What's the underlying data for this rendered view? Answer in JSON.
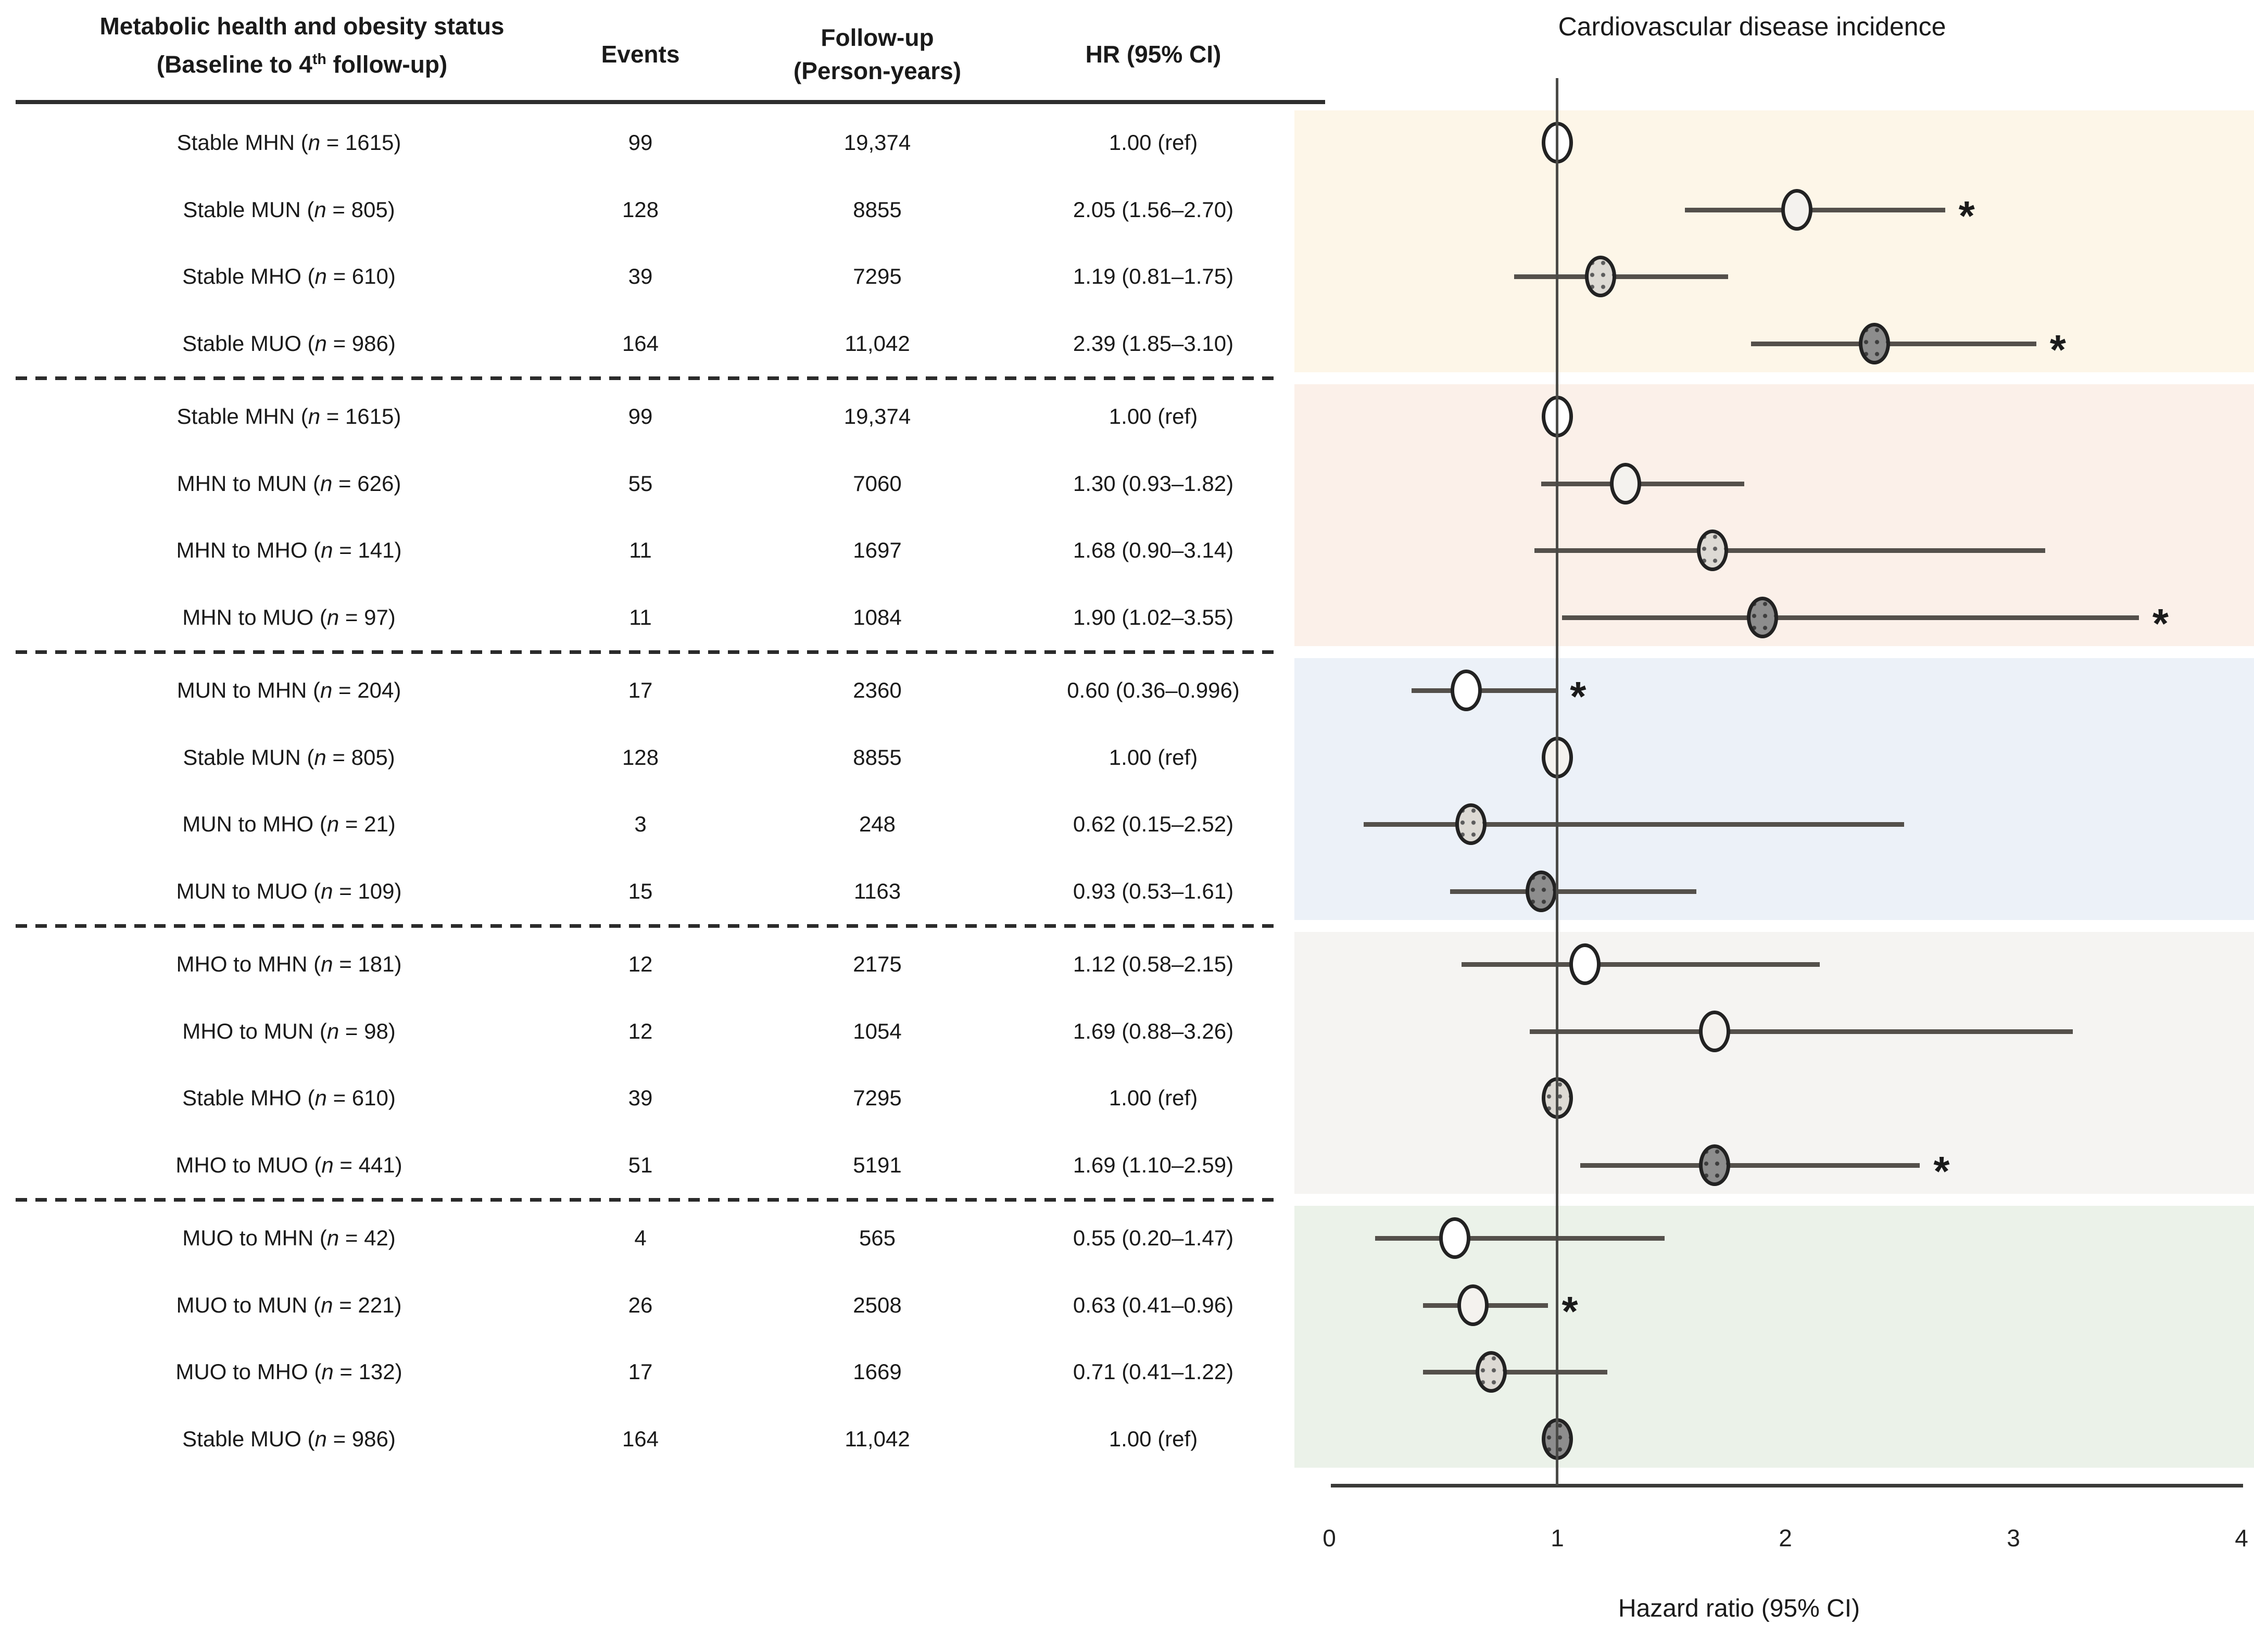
{
  "table": {
    "header": {
      "col1_line1": "Metabolic health and obesity status",
      "col1_line2_pre": "(Baseline to 4",
      "col1_line2_sup": "th",
      "col1_line2_post": " follow-up)",
      "col2": "Events",
      "col3_line1": "Follow-up",
      "col3_line2": "(Person-years)",
      "col4": "HR (95% CI)"
    }
  },
  "chart_data": {
    "type": "forest",
    "title": "Cardiovascular disease incidence",
    "xlabel": "Hazard ratio (95% CI)",
    "xlim": [
      0,
      4
    ],
    "xticks": [
      "0",
      "1",
      "2",
      "3",
      "4"
    ],
    "ref_line": 1.0,
    "grid": false,
    "significance_symbol": "*",
    "marker_colors": {
      "mhn": "#FFFFFF",
      "mun": "#F4F2EE",
      "mho": "#DDDAD4",
      "muo": "#8D8D8D"
    },
    "sections": [
      {
        "band_color": "#FDF6E8",
        "rows": [
          {
            "label": "Stable MHN",
            "n": "1615",
            "events": "99",
            "person_years": "19,374",
            "hr_text": "1.00 (ref)",
            "hr": 1.0,
            "ci_low": null,
            "ci_high": null,
            "marker": "mhn",
            "significant": false
          },
          {
            "label": "Stable MUN",
            "n": "805",
            "events": "128",
            "person_years": "8855",
            "hr_text": "2.05 (1.56–2.70)",
            "hr": 2.05,
            "ci_low": 1.56,
            "ci_high": 2.7,
            "marker": "mun",
            "significant": true
          },
          {
            "label": "Stable MHO",
            "n": "610",
            "events": "39",
            "person_years": "7295",
            "hr_text": "1.19 (0.81–1.75)",
            "hr": 1.19,
            "ci_low": 0.81,
            "ci_high": 1.75,
            "marker": "mho",
            "significant": false
          },
          {
            "label": "Stable MUO",
            "n": "986",
            "events": "164",
            "person_years": "11,042",
            "hr_text": "2.39 (1.85–3.10)",
            "hr": 2.39,
            "ci_low": 1.85,
            "ci_high": 3.1,
            "marker": "muo",
            "significant": true
          }
        ]
      },
      {
        "band_color": "#FBF0E9",
        "rows": [
          {
            "label": "Stable MHN",
            "n": "1615",
            "events": "99",
            "person_years": "19,374",
            "hr_text": "1.00 (ref)",
            "hr": 1.0,
            "ci_low": null,
            "ci_high": null,
            "marker": "mhn",
            "significant": false
          },
          {
            "label": "MHN to MUN",
            "n": "626",
            "events": "55",
            "person_years": "7060",
            "hr_text": "1.30 (0.93–1.82)",
            "hr": 1.3,
            "ci_low": 0.93,
            "ci_high": 1.82,
            "marker": "mun",
            "significant": false
          },
          {
            "label": "MHN to MHO",
            "n": "141",
            "events": "11",
            "person_years": "1697",
            "hr_text": "1.68 (0.90–3.14)",
            "hr": 1.68,
            "ci_low": 0.9,
            "ci_high": 3.14,
            "marker": "mho",
            "significant": false
          },
          {
            "label": "MHN to MUO",
            "n": "97",
            "events": "11",
            "person_years": "1084",
            "hr_text": "1.90 (1.02–3.55)",
            "hr": 1.9,
            "ci_low": 1.02,
            "ci_high": 3.55,
            "marker": "muo",
            "significant": true
          }
        ]
      },
      {
        "band_color": "#ECF1F8",
        "rows": [
          {
            "label": "MUN to MHN",
            "n": "204",
            "events": "17",
            "person_years": "2360",
            "hr_text": "0.60 (0.36–0.996)",
            "hr": 0.6,
            "ci_low": 0.36,
            "ci_high": 0.996,
            "marker": "mhn",
            "significant": true
          },
          {
            "label": "Stable MUN",
            "n": "805",
            "events": "128",
            "person_years": "8855",
            "hr_text": "1.00 (ref)",
            "hr": 1.0,
            "ci_low": null,
            "ci_high": null,
            "marker": "mun",
            "significant": false
          },
          {
            "label": "MUN to MHO",
            "n": "21",
            "events": "3",
            "person_years": "248",
            "hr_text": "0.62 (0.15–2.52)",
            "hr": 0.62,
            "ci_low": 0.15,
            "ci_high": 2.52,
            "marker": "mho",
            "significant": false
          },
          {
            "label": "MUN to MUO",
            "n": "109",
            "events": "15",
            "person_years": "1163",
            "hr_text": "0.93 (0.53–1.61)",
            "hr": 0.93,
            "ci_low": 0.53,
            "ci_high": 1.61,
            "marker": "muo",
            "significant": false
          }
        ]
      },
      {
        "band_color": "#F5F4F2",
        "rows": [
          {
            "label": "MHO to MHN",
            "n": "181",
            "events": "12",
            "person_years": "2175",
            "hr_text": "1.12 (0.58–2.15)",
            "hr": 1.12,
            "ci_low": 0.58,
            "ci_high": 2.15,
            "marker": "mhn",
            "significant": false
          },
          {
            "label": "MHO to MUN",
            "n": "98",
            "events": "12",
            "person_years": "1054",
            "hr_text": "1.69 (0.88–3.26)",
            "hr": 1.69,
            "ci_low": 0.88,
            "ci_high": 3.26,
            "marker": "mun",
            "significant": false
          },
          {
            "label": "Stable MHO",
            "n": "610",
            "events": "39",
            "person_years": "7295",
            "hr_text": "1.00 (ref)",
            "hr": 1.0,
            "ci_low": null,
            "ci_high": null,
            "marker": "mho",
            "significant": false
          },
          {
            "label": "MHO to MUO",
            "n": "441",
            "events": "51",
            "person_years": "5191",
            "hr_text": "1.69 (1.10–2.59)",
            "hr": 1.69,
            "ci_low": 1.1,
            "ci_high": 2.59,
            "marker": "muo",
            "significant": true
          }
        ]
      },
      {
        "band_color": "#EBF2E9",
        "rows": [
          {
            "label": "MUO to MHN",
            "n": "42",
            "events": "4",
            "person_years": "565",
            "hr_text": "0.55 (0.20–1.47)",
            "hr": 0.55,
            "ci_low": 0.2,
            "ci_high": 1.47,
            "marker": "mhn",
            "significant": false
          },
          {
            "label": "MUO to MUN",
            "n": "221",
            "events": "26",
            "person_years": "2508",
            "hr_text": "0.63 (0.41–0.96)",
            "hr": 0.63,
            "ci_low": 0.41,
            "ci_high": 0.96,
            "marker": "mun",
            "significant": true
          },
          {
            "label": "MUO to MHO",
            "n": "132",
            "events": "17",
            "person_years": "1669",
            "hr_text": "0.71 (0.41–1.22)",
            "hr": 0.71,
            "ci_low": 0.41,
            "ci_high": 1.22,
            "marker": "mho",
            "significant": false
          },
          {
            "label": "Stable MUO",
            "n": "986",
            "events": "164",
            "person_years": "11,042",
            "hr_text": "1.00 (ref)",
            "hr": 1.0,
            "ci_low": null,
            "ci_high": null,
            "marker": "muo",
            "significant": false
          }
        ]
      }
    ]
  }
}
